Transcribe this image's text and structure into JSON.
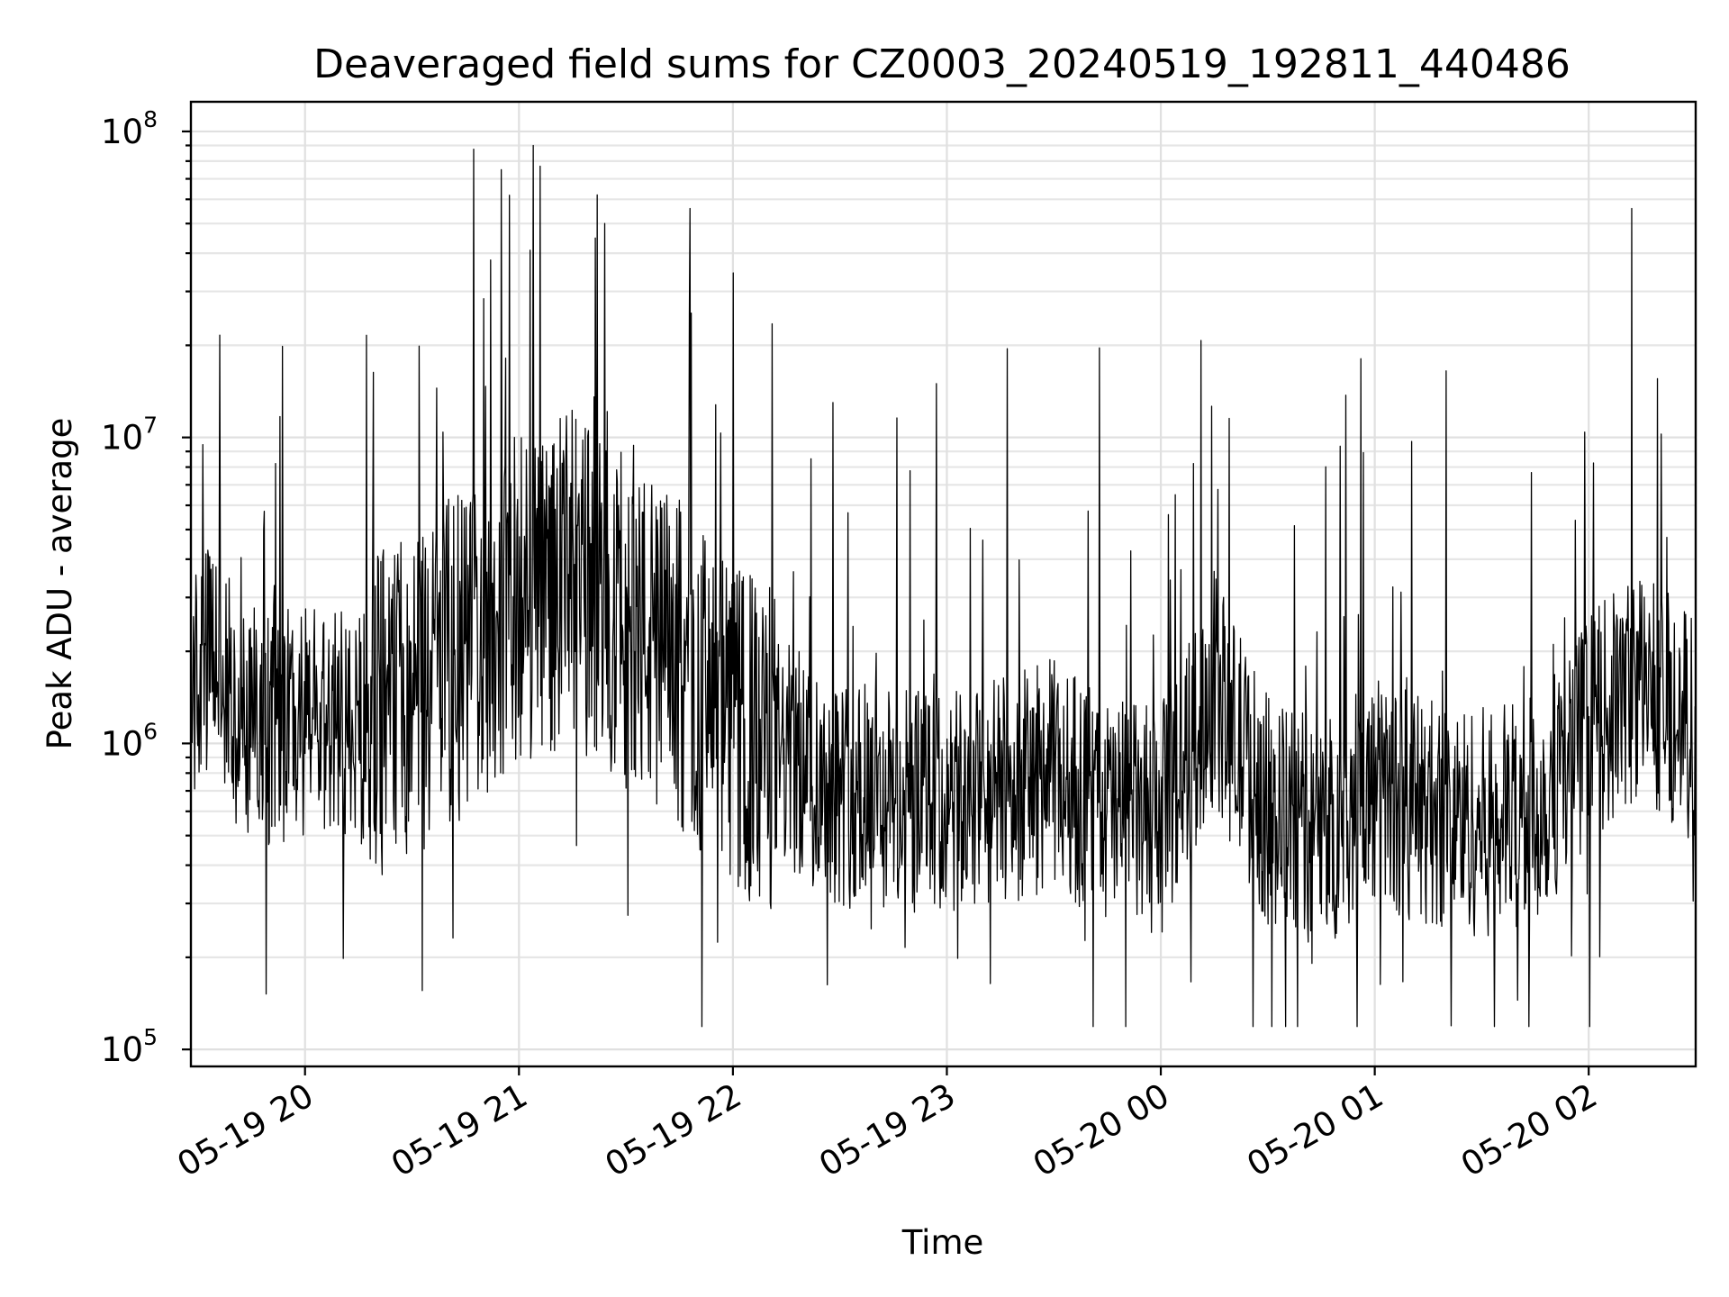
{
  "chart_data": {
    "type": "line",
    "title": "Deaveraged field sums for CZ0003_20240519_192811_440486",
    "xlabel": "Time",
    "ylabel": "Peak ADU - average",
    "yscale": "log",
    "ylim": [
      88000,
      125000000
    ],
    "y_ticks": [
      {
        "base": "10",
        "exp": "5",
        "value": 100000
      },
      {
        "base": "10",
        "exp": "6",
        "value": 1000000
      },
      {
        "base": "10",
        "exp": "7",
        "value": 10000000
      },
      {
        "base": "10",
        "exp": "8",
        "value": 100000000
      }
    ],
    "xlim": [
      "2024-05-19 19:28",
      "2024-05-20 02:30"
    ],
    "x_ticks": [
      {
        "label": "05-19 20",
        "time": "2024-05-19 20:00"
      },
      {
        "label": "05-19 21",
        "time": "2024-05-19 21:00"
      },
      {
        "label": "05-19 22",
        "time": "2024-05-19 22:00"
      },
      {
        "label": "05-19 23",
        "time": "2024-05-19 23:00"
      },
      {
        "label": "05-20 00",
        "time": "2024-05-20 00:00"
      },
      {
        "label": "05-20 01",
        "time": "2024-05-20 01:00"
      },
      {
        "label": "05-20 02",
        "time": "2024-05-20 02:00"
      }
    ],
    "grid": true,
    "line_color": "#000000",
    "series": [
      {
        "x": [
          "19:28",
          "19:35",
          "19:40",
          "19:45",
          "19:50",
          "20:00",
          "20:15",
          "20:30",
          "20:45",
          "21:00",
          "21:15",
          "21:30",
          "21:45",
          "22:00",
          "22:15",
          "22:30",
          "22:45",
          "23:00",
          "23:15",
          "23:30",
          "23:45",
          "00:00",
          "00:15",
          "00:30",
          "00:45",
          "01:00",
          "01:15",
          "01:30",
          "01:45",
          "02:00",
          "02:15",
          "02:30"
        ],
        "values": [
          1500000,
          2000000,
          1300000,
          1200000,
          1100000,
          1200000,
          1100000,
          1500000,
          2000000,
          3000000,
          3500000,
          2500000,
          1800000,
          1100000,
          900000,
          700000,
          650000,
          600000,
          700000,
          800000,
          600000,
          550000,
          1500000,
          600000,
          500000,
          700000,
          600000,
          550000,
          600000,
          1100000,
          1600000,
          1100000
        ]
      }
    ],
    "spikes": [
      {
        "time": "19:53",
        "value": 11700000
      },
      {
        "time": "20:37",
        "value": 14500000
      },
      {
        "time": "20:52",
        "value": 38000000
      },
      {
        "time": "20:55",
        "value": 75000000
      },
      {
        "time": "21:04",
        "value": 90000000
      },
      {
        "time": "21:06",
        "value": 77000000
      },
      {
        "time": "21:22",
        "value": 62000000
      },
      {
        "time": "21:24",
        "value": 50000000
      },
      {
        "time": "21:48",
        "value": 56000000
      },
      {
        "time": "22:28",
        "value": 13000000
      },
      {
        "time": "22:57",
        "value": 15000000
      },
      {
        "time": "23:17",
        "value": 19500000
      },
      {
        "time": "00:04",
        "value": 6500000
      },
      {
        "time": "01:20",
        "value": 16500000
      },
      {
        "time": "02:12",
        "value": 56000000
      }
    ]
  }
}
